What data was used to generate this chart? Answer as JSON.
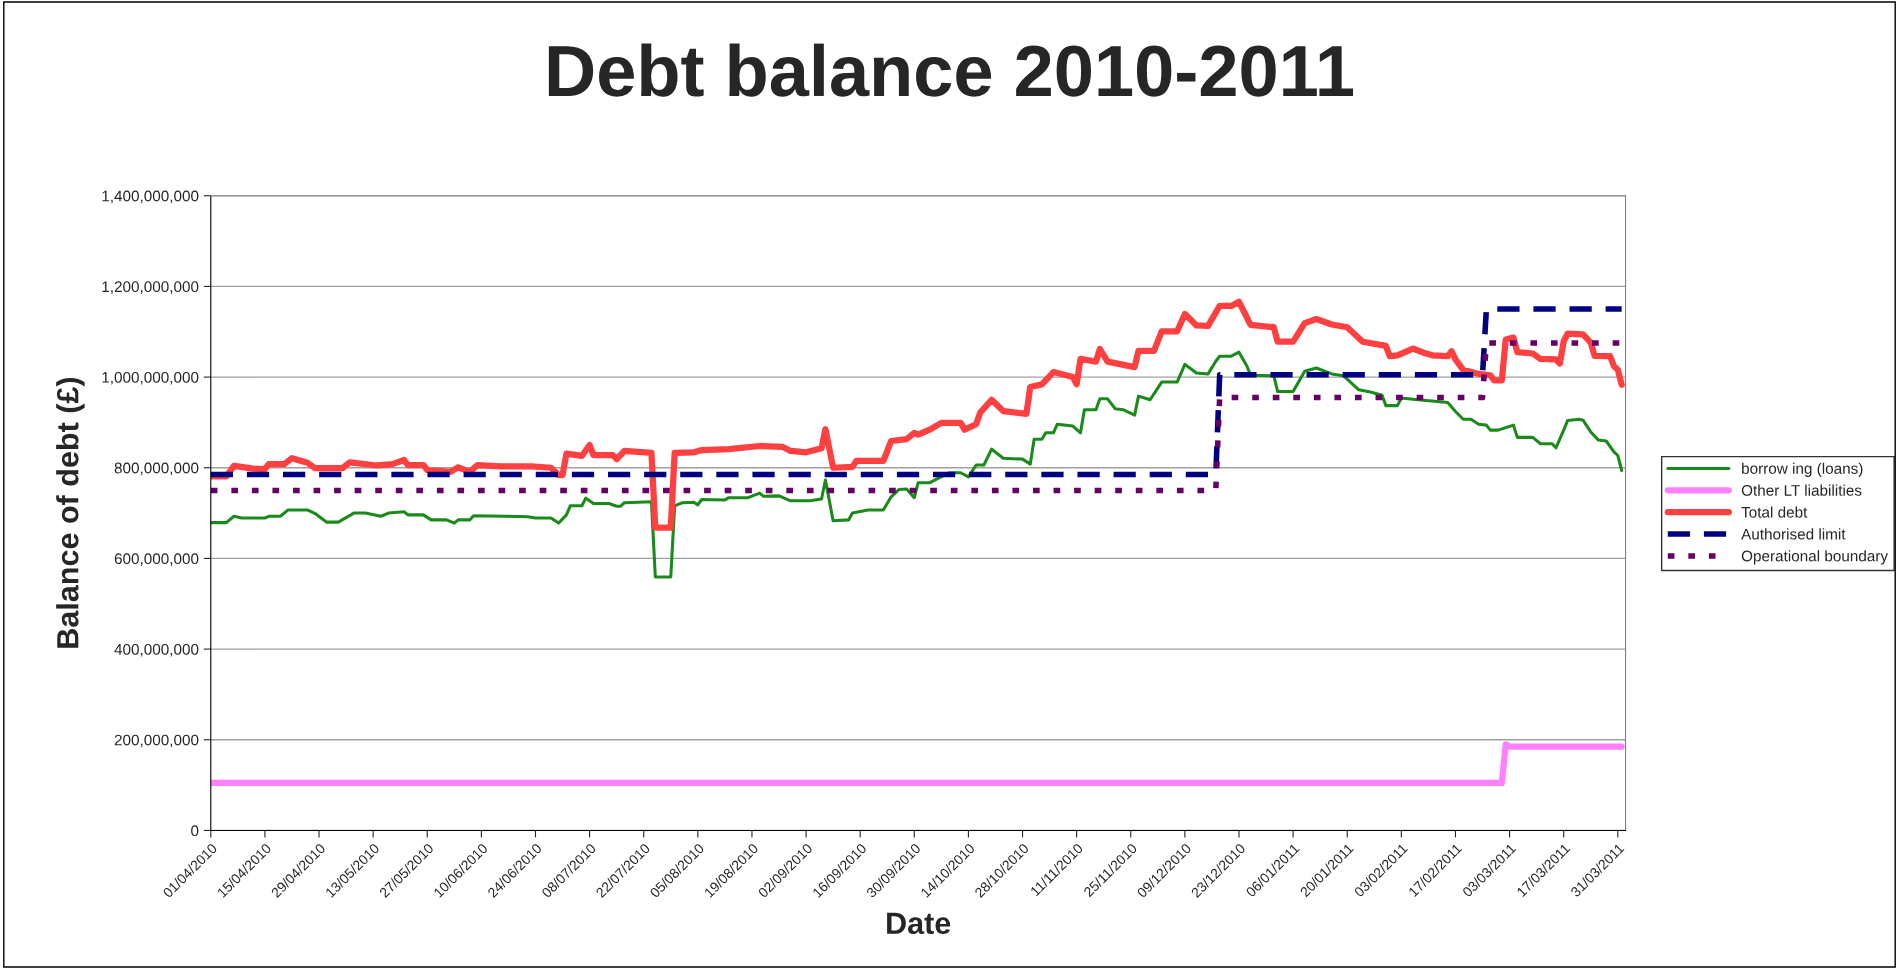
{
  "chart_data": {
    "type": "line",
    "title": "Debt balance 2010-2011",
    "xlabel": "Date",
    "ylabel": "Balance of debt (£)",
    "xlim": [
      "2010-04-01",
      "2011-04-02"
    ],
    "xticks": [
      {
        "value": "2010-04-01",
        "label": "01/04/2010"
      },
      {
        "value": "2010-04-15",
        "label": "15/04/2010"
      },
      {
        "value": "2010-04-29",
        "label": "29/04/2010"
      },
      {
        "value": "2010-05-13",
        "label": "13/05/2010"
      },
      {
        "value": "2010-05-27",
        "label": "27/05/2010"
      },
      {
        "value": "2010-06-10",
        "label": "10/06/2010"
      },
      {
        "value": "2010-06-24",
        "label": "24/06/2010"
      },
      {
        "value": "2010-07-08",
        "label": "08/07/2010"
      },
      {
        "value": "2010-07-22",
        "label": "22/07/2010"
      },
      {
        "value": "2010-08-05",
        "label": "05/08/2010"
      },
      {
        "value": "2010-08-19",
        "label": "19/08/2010"
      },
      {
        "value": "2010-09-02",
        "label": "02/09/2010"
      },
      {
        "value": "2010-09-16",
        "label": "16/09/2010"
      },
      {
        "value": "2010-09-30",
        "label": "30/09/2010"
      },
      {
        "value": "2010-10-14",
        "label": "14/10/2010"
      },
      {
        "value": "2010-10-28",
        "label": "28/10/2010"
      },
      {
        "value": "2010-11-11",
        "label": "11/11/2010"
      },
      {
        "value": "2010-11-25",
        "label": "25/11/2010"
      },
      {
        "value": "2010-12-09",
        "label": "09/12/2010"
      },
      {
        "value": "2010-12-23",
        "label": "23/12/2010"
      },
      {
        "value": "2011-01-06",
        "label": "06/01/2011"
      },
      {
        "value": "2011-01-20",
        "label": "20/01/2011"
      },
      {
        "value": "2011-02-03",
        "label": "03/02/2011"
      },
      {
        "value": "2011-02-17",
        "label": "17/02/2011"
      },
      {
        "value": "2011-03-03",
        "label": "03/03/2011"
      },
      {
        "value": "2011-03-17",
        "label": "17/03/2011"
      },
      {
        "value": "2011-03-31",
        "label": "31/03/2011"
      }
    ],
    "ylim": [
      0,
      1400000000
    ],
    "yticks": [
      0,
      {
        "value": 200000000,
        "label": "200,000,000"
      },
      {
        "value": 400000000,
        "label": "400,000,000"
      },
      {
        "value": 600000000,
        "label": "600,000,000"
      },
      {
        "value": 800000000,
        "label": "800,000,000"
      },
      {
        "value": 1000000000,
        "label": "1,000,000,000"
      },
      {
        "value": 1200000000,
        "label": "1,200,000,000"
      },
      {
        "value": 1400000000,
        "label": "1,400,000,000"
      }
    ],
    "grid": "y",
    "legend": "right",
    "series": [
      {
        "name": "borrow ing (loans)",
        "color": "#1a8a1a",
        "line_style": "solid",
        "x": [
          "2010-04-01",
          "2010-04-05",
          "2010-04-07",
          "2010-04-09",
          "2010-04-15",
          "2010-04-16",
          "2010-04-19",
          "2010-04-21",
          "2010-04-26",
          "2010-04-28",
          "2010-05-01",
          "2010-05-04",
          "2010-05-06",
          "2010-05-08",
          "2010-05-11",
          "2010-05-15",
          "2010-05-17",
          "2010-05-21",
          "2010-05-22",
          "2010-05-26",
          "2010-05-28",
          "2010-06-01",
          "2010-06-03",
          "2010-06-04",
          "2010-06-07",
          "2010-06-08",
          "2010-06-16",
          "2010-06-22",
          "2010-06-24",
          "2010-06-28",
          "2010-06-30",
          "2010-07-02",
          "2010-07-03",
          "2010-07-06",
          "2010-07-07",
          "2010-07-09",
          "2010-07-13",
          "2010-07-15",
          "2010-07-16",
          "2010-07-17",
          "2010-07-24",
          "2010-07-25",
          "2010-07-29",
          "2010-07-30",
          "2010-08-01",
          "2010-08-04",
          "2010-08-05",
          "2010-08-06",
          "2010-08-12",
          "2010-08-13",
          "2010-08-18",
          "2010-08-21",
          "2010-08-22",
          "2010-08-26",
          "2010-08-29",
          "2010-09-03",
          "2010-09-06",
          "2010-09-07",
          "2010-09-09",
          "2010-09-13",
          "2010-09-14",
          "2010-09-18",
          "2010-09-22",
          "2010-09-24",
          "2010-09-26",
          "2010-09-28",
          "2010-09-30",
          "2010-10-01",
          "2010-10-04",
          "2010-10-09",
          "2010-10-12",
          "2010-10-14",
          "2010-10-16",
          "2010-10-18",
          "2010-10-20",
          "2010-10-23",
          "2010-10-28",
          "2010-10-30",
          "2010-10-31",
          "2010-11-02",
          "2010-11-03",
          "2010-11-05",
          "2010-11-06",
          "2010-11-10",
          "2010-11-12",
          "2010-11-13",
          "2010-11-16",
          "2010-11-17",
          "2010-11-19",
          "2010-11-21",
          "2010-11-23",
          "2010-11-26",
          "2010-11-27",
          "2010-11-30",
          "2010-12-03",
          "2010-12-07",
          "2010-12-09",
          "2010-12-12",
          "2010-12-15",
          "2010-12-17",
          "2010-12-18",
          "2010-12-21",
          "2010-12-23",
          "2010-12-25",
          "2010-12-26",
          "2011-01-01",
          "2011-01-02",
          "2011-01-06",
          "2011-01-09",
          "2011-01-12",
          "2011-01-16",
          "2011-01-19",
          "2011-01-23",
          "2011-01-26",
          "2011-01-29",
          "2011-01-30",
          "2011-02-02",
          "2011-02-03",
          "2011-02-06",
          "2011-02-15",
          "2011-02-17",
          "2011-02-19",
          "2011-02-21",
          "2011-02-23",
          "2011-02-25",
          "2011-02-26",
          "2011-02-28",
          "2011-03-04",
          "2011-03-05",
          "2011-03-09",
          "2011-03-11",
          "2011-03-14",
          "2011-03-15",
          "2011-03-17",
          "2011-03-18",
          "2011-03-21",
          "2011-03-22",
          "2011-03-24",
          "2011-03-26",
          "2011-03-28",
          "2011-03-30",
          "2011-03-31",
          "2011-04-01"
        ],
        "values": [
          679000000,
          679000000,
          693000000,
          689000000,
          689000000,
          693000000,
          693000000,
          707000000,
          707000000,
          699000000,
          680000000,
          680000000,
          690000000,
          700000000,
          700000000,
          693000000,
          700000000,
          703000000,
          696000000,
          696000000,
          685000000,
          685000000,
          678000000,
          685000000,
          685000000,
          694000000,
          693000000,
          692000000,
          689000000,
          689000000,
          678000000,
          696000000,
          716000000,
          716000000,
          733000000,
          721000000,
          721000000,
          715000000,
          715000000,
          723000000,
          725000000,
          559000000,
          559000000,
          716000000,
          723000000,
          724000000,
          718000000,
          730000000,
          729000000,
          734000000,
          734000000,
          744000000,
          737000000,
          738000000,
          727000000,
          727000000,
          731000000,
          773000000,
          683000000,
          685000000,
          700000000,
          707000000,
          707000000,
          736000000,
          752000000,
          753000000,
          734000000,
          767000000,
          767000000,
          789000000,
          789000000,
          780000000,
          806000000,
          806000000,
          841000000,
          821000000,
          819000000,
          808000000,
          863000000,
          863000000,
          877000000,
          877000000,
          896000000,
          892000000,
          877000000,
          928000000,
          928000000,
          952000000,
          952000000,
          930000000,
          928000000,
          916000000,
          958000000,
          950000000,
          989000000,
          989000000,
          1028000000,
          1009000000,
          1007000000,
          1035000000,
          1046000000,
          1046000000,
          1055000000,
          1025000000,
          1004000000,
          1003000000,
          968000000,
          968000000,
          1013000000,
          1020000000,
          1007000000,
          1003000000,
          972000000,
          967000000,
          960000000,
          937000000,
          937000000,
          954000000,
          951000000,
          944000000,
          924000000,
          907000000,
          907000000,
          896000000,
          894000000,
          883000000,
          883000000,
          894000000,
          867000000,
          867000000,
          853000000,
          853000000,
          844000000,
          883000000,
          904000000,
          907000000,
          905000000,
          879000000,
          861000000,
          859000000,
          835000000,
          827000000,
          794000000
        ]
      },
      {
        "name": "Other LT liabilities",
        "color": "#ff80ff",
        "line_style": "solid",
        "x": [
          "2010-04-01",
          "2011-03-01",
          "2011-03-02",
          "2011-03-03",
          "2011-04-01"
        ],
        "values": [
          105000000,
          105000000,
          190000000,
          185000000,
          185000000
        ]
      },
      {
        "name": "Total debt",
        "color": "#ff4040",
        "line_style": "solid",
        "x": [
          "2010-04-01",
          "2010-04-05",
          "2010-04-07",
          "2010-04-12",
          "2010-04-15",
          "2010-04-16",
          "2010-04-20",
          "2010-04-22",
          "2010-04-26",
          "2010-04-28",
          "2010-05-05",
          "2010-05-07",
          "2010-05-14",
          "2010-05-18",
          "2010-05-21",
          "2010-05-22",
          "2010-05-26",
          "2010-05-27",
          "2010-06-02",
          "2010-06-04",
          "2010-06-07",
          "2010-06-09",
          "2010-06-15",
          "2010-06-23",
          "2010-06-28",
          "2010-06-30",
          "2010-07-01",
          "2010-07-02",
          "2010-07-06",
          "2010-07-08",
          "2010-07-09",
          "2010-07-14",
          "2010-07-15",
          "2010-07-17",
          "2010-07-24",
          "2010-07-25",
          "2010-07-29",
          "2010-07-30",
          "2010-08-04",
          "2010-08-06",
          "2010-08-13",
          "2010-08-21",
          "2010-08-27",
          "2010-08-29",
          "2010-09-02",
          "2010-09-06",
          "2010-09-07",
          "2010-09-09",
          "2010-09-14",
          "2010-09-15",
          "2010-09-22",
          "2010-09-24",
          "2010-09-28",
          "2010-09-30",
          "2010-10-01",
          "2010-10-04",
          "2010-10-07",
          "2010-10-12",
          "2010-10-13",
          "2010-10-16",
          "2010-10-17",
          "2010-10-20",
          "2010-10-23",
          "2010-10-29",
          "2010-10-30",
          "2010-11-02",
          "2010-11-05",
          "2010-11-10",
          "2010-11-11",
          "2010-11-12",
          "2010-11-16",
          "2010-11-17",
          "2010-11-19",
          "2010-11-26",
          "2010-11-27",
          "2010-12-01",
          "2010-12-03",
          "2010-12-07",
          "2010-12-09",
          "2010-12-12",
          "2010-12-15",
          "2010-12-18",
          "2010-12-21",
          "2010-12-23",
          "2010-12-26",
          "2011-01-01",
          "2011-01-02",
          "2011-01-06",
          "2011-01-09",
          "2011-01-12",
          "2011-01-16",
          "2011-01-20",
          "2011-01-24",
          "2011-01-30",
          "2011-01-31",
          "2011-02-02",
          "2011-02-06",
          "2011-02-09",
          "2011-02-11",
          "2011-02-15",
          "2011-02-16",
          "2011-02-17",
          "2011-02-19",
          "2011-02-23",
          "2011-02-26",
          "2011-02-27",
          "2011-03-01",
          "2011-03-02",
          "2011-03-04",
          "2011-03-05",
          "2011-03-09",
          "2011-03-11",
          "2011-03-15",
          "2011-03-16",
          "2011-03-17",
          "2011-03-18",
          "2011-03-22",
          "2011-03-24",
          "2011-03-25",
          "2011-03-29",
          "2011-03-30",
          "2011-03-31",
          "2011-04-01"
        ],
        "values": [
          781000000,
          781000000,
          804000000,
          798000000,
          797000000,
          808000000,
          808000000,
          821000000,
          811000000,
          799000000,
          799000000,
          812000000,
          805000000,
          808000000,
          817000000,
          806000000,
          806000000,
          795000000,
          791000000,
          801000000,
          791000000,
          806000000,
          803000000,
          803000000,
          800000000,
          784000000,
          784000000,
          831000000,
          826000000,
          850000000,
          828000000,
          828000000,
          819000000,
          837000000,
          833000000,
          668000000,
          668000000,
          833000000,
          834000000,
          839000000,
          841000000,
          848000000,
          846000000,
          837000000,
          834000000,
          843000000,
          885000000,
          800000000,
          802000000,
          815000000,
          815000000,
          859000000,
          863000000,
          877000000,
          873000000,
          884000000,
          899000000,
          899000000,
          884000000,
          896000000,
          921000000,
          950000000,
          925000000,
          919000000,
          978000000,
          984000000,
          1011000000,
          1000000000,
          984000000,
          1040000000,
          1034000000,
          1062000000,
          1034000000,
          1022000000,
          1058000000,
          1058000000,
          1101000000,
          1101000000,
          1139000000,
          1114000000,
          1113000000,
          1157000000,
          1157000000,
          1166000000,
          1115000000,
          1110000000,
          1078000000,
          1078000000,
          1119000000,
          1128000000,
          1116000000,
          1110000000,
          1078000000,
          1069000000,
          1046000000,
          1048000000,
          1063000000,
          1053000000,
          1048000000,
          1046000000,
          1057000000,
          1039000000,
          1016000000,
          1007000000,
          1004000000,
          993000000,
          993000000,
          1083000000,
          1087000000,
          1055000000,
          1052000000,
          1040000000,
          1039000000,
          1030000000,
          1079000000,
          1096000000,
          1094000000,
          1076000000,
          1047000000,
          1046000000,
          1024000000,
          1016000000,
          983000000
        ]
      },
      {
        "name": "Authorised limit",
        "color": "#000080",
        "line_style": "dashed",
        "x": [
          "2010-04-01",
          "2010-12-17",
          "2010-12-18",
          "2011-02-24",
          "2011-02-25",
          "2011-04-01"
        ],
        "values": [
          785000000,
          785000000,
          1005000000,
          1005000000,
          1150000000,
          1150000000
        ]
      },
      {
        "name": "Operational boundary",
        "color": "#660066",
        "line_style": "dotted",
        "x": [
          "2010-04-01",
          "2010-12-17",
          "2010-12-18",
          "2011-02-24",
          "2011-02-25",
          "2011-04-01"
        ],
        "values": [
          750000000,
          750000000,
          955000000,
          955000000,
          1075000000,
          1075000000
        ]
      }
    ]
  }
}
